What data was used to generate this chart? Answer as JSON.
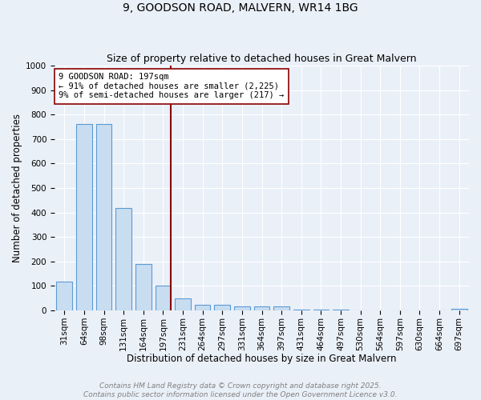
{
  "title1": "9, GOODSON ROAD, MALVERN, WR14 1BG",
  "title2": "Size of property relative to detached houses in Great Malvern",
  "xlabel": "Distribution of detached houses by size in Great Malvern",
  "ylabel": "Number of detached properties",
  "categories": [
    "31sqm",
    "64sqm",
    "98sqm",
    "131sqm",
    "164sqm",
    "197sqm",
    "231sqm",
    "264sqm",
    "297sqm",
    "331sqm",
    "364sqm",
    "397sqm",
    "431sqm",
    "464sqm",
    "497sqm",
    "530sqm",
    "564sqm",
    "597sqm",
    "630sqm",
    "664sqm",
    "697sqm"
  ],
  "values": [
    117,
    760,
    760,
    420,
    190,
    100,
    48,
    22,
    23,
    18,
    15,
    18,
    5,
    5,
    5,
    0,
    0,
    0,
    0,
    0,
    8
  ],
  "bar_color": "#c9ddf0",
  "bar_edge_color": "#5b9bd5",
  "property_index": 5,
  "property_label": "9 GOODSON ROAD: 197sqm",
  "annotation_line1": "← 91% of detached houses are smaller (2,225)",
  "annotation_line2": "9% of semi-detached houses are larger (217) →",
  "annotation_box_color": "white",
  "annotation_box_edge_color": "darkred",
  "vline_color": "darkred",
  "ylim": [
    0,
    1000
  ],
  "yticks": [
    0,
    100,
    200,
    300,
    400,
    500,
    600,
    700,
    800,
    900,
    1000
  ],
  "background_color": "#eaf0f8",
  "grid_color": "white",
  "footer_line1": "Contains HM Land Registry data © Crown copyright and database right 2025.",
  "footer_line2": "Contains public sector information licensed under the Open Government Licence v3.0.",
  "title_fontsize": 10,
  "subtitle_fontsize": 9,
  "axis_label_fontsize": 8.5,
  "tick_fontsize": 7.5,
  "annotation_fontsize": 7.5,
  "footer_fontsize": 6.5
}
